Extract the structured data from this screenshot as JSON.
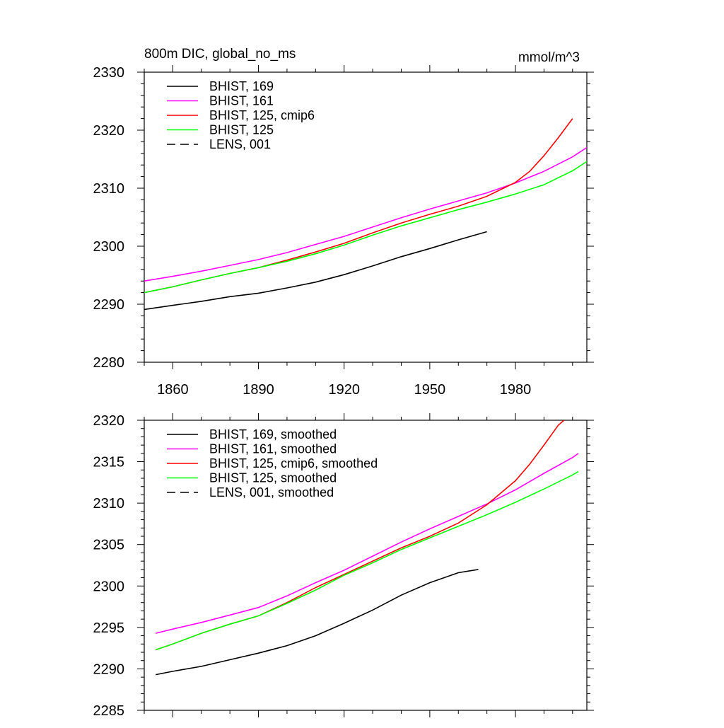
{
  "chart_data": [
    {
      "type": "line",
      "title_left": "800m DIC, global_no_ms",
      "title_right": "mmol/m^3",
      "xlim": [
        1850,
        2005
      ],
      "ylim": [
        2280,
        2330
      ],
      "xticks": [
        1860,
        1890,
        1920,
        1950,
        1980
      ],
      "xtick_labels": [
        "1860",
        "1890",
        "1920",
        "1950",
        "1980"
      ],
      "yticks": [
        2280,
        2290,
        2300,
        2310,
        2320,
        2330
      ],
      "ytick_labels": [
        "2280",
        "2290",
        "2300",
        "2310",
        "2320",
        "2330"
      ],
      "legend_position": "top-left",
      "series": [
        {
          "name": "BHIST, 169",
          "color": "#000000",
          "dash": "solid",
          "x": [
            1850,
            1860,
            1870,
            1880,
            1890,
            1900,
            1910,
            1920,
            1930,
            1940,
            1950,
            1960,
            1970
          ],
          "y": [
            2289.1,
            2289.8,
            2290.5,
            2291.3,
            2291.9,
            2292.8,
            2293.8,
            2295.1,
            2296.6,
            2298.2,
            2299.6,
            2301.1,
            2302.5
          ]
        },
        {
          "name": "BHIST, 161",
          "color": "#ff00ff",
          "dash": "solid",
          "x": [
            1850,
            1860,
            1870,
            1880,
            1890,
            1900,
            1910,
            1920,
            1930,
            1940,
            1950,
            1960,
            1970,
            1980,
            1990,
            2000,
            2005
          ],
          "y": [
            2294.0,
            2294.8,
            2295.7,
            2296.7,
            2297.7,
            2298.9,
            2300.3,
            2301.7,
            2303.3,
            2304.9,
            2306.4,
            2307.8,
            2309.2,
            2310.9,
            2312.9,
            2315.4,
            2317.0
          ]
        },
        {
          "name": "BHIST, 125, cmip6",
          "color": "#ff0000",
          "dash": "solid",
          "x": [
            1850,
            1860,
            1870,
            1880,
            1890,
            1900,
            1910,
            1920,
            1930,
            1940,
            1950,
            1960,
            1970,
            1980,
            1985,
            1990,
            1995,
            2000
          ],
          "y": [
            2292.0,
            2293.0,
            2294.2,
            2295.3,
            2296.3,
            2297.6,
            2299.0,
            2300.5,
            2302.3,
            2304.0,
            2305.5,
            2306.9,
            2308.6,
            2311.0,
            2312.9,
            2315.6,
            2318.7,
            2322.0
          ]
        },
        {
          "name": "BHIST, 125",
          "color": "#00ff00",
          "dash": "solid",
          "x": [
            1850,
            1860,
            1870,
            1880,
            1890,
            1900,
            1910,
            1920,
            1930,
            1940,
            1950,
            1960,
            1970,
            1980,
            1990,
            2000,
            2005
          ],
          "y": [
            2292.0,
            2293.0,
            2294.2,
            2295.3,
            2296.3,
            2297.4,
            2298.7,
            2300.2,
            2301.9,
            2303.5,
            2304.9,
            2306.3,
            2307.6,
            2309.0,
            2310.6,
            2313.0,
            2314.6
          ]
        },
        {
          "name": "LENS, 001",
          "color": "#000000",
          "dash": "dashed",
          "x": [],
          "y": []
        }
      ]
    },
    {
      "type": "line",
      "xlim": [
        1850,
        2005
      ],
      "ylim": [
        2285,
        2320
      ],
      "xticks": [
        1860,
        1890,
        1920,
        1950,
        1980
      ],
      "yticks": [
        2285,
        2290,
        2295,
        2300,
        2305,
        2310,
        2315,
        2320
      ],
      "ytick_labels": [
        "2285",
        "2290",
        "2295",
        "2300",
        "2305",
        "2310",
        "2315",
        "2320"
      ],
      "legend_position": "top-left",
      "series": [
        {
          "name": "BHIST, 169, smoothed",
          "color": "#000000",
          "dash": "solid",
          "x": [
            1854,
            1860,
            1870,
            1880,
            1890,
            1900,
            1910,
            1920,
            1930,
            1940,
            1950,
            1960,
            1967
          ],
          "y": [
            2289.3,
            2289.7,
            2290.3,
            2291.1,
            2291.9,
            2292.8,
            2294.0,
            2295.5,
            2297.1,
            2298.9,
            2300.4,
            2301.6,
            2302.0
          ]
        },
        {
          "name": "BHIST, 161, smoothed",
          "color": "#ff00ff",
          "dash": "solid",
          "x": [
            1854,
            1860,
            1870,
            1880,
            1890,
            1900,
            1910,
            1920,
            1930,
            1940,
            1950,
            1960,
            1970,
            1980,
            1990,
            2000,
            2002
          ],
          "y": [
            2294.3,
            2294.8,
            2295.6,
            2296.5,
            2297.4,
            2298.8,
            2300.4,
            2301.9,
            2303.6,
            2305.3,
            2306.9,
            2308.4,
            2309.9,
            2311.6,
            2313.6,
            2315.5,
            2316.0
          ]
        },
        {
          "name": "BHIST, 125, cmip6, smoothed",
          "color": "#ff0000",
          "dash": "solid",
          "x": [
            1854,
            1860,
            1870,
            1880,
            1890,
            1900,
            1910,
            1920,
            1930,
            1940,
            1950,
            1960,
            1970,
            1980,
            1985,
            1990,
            1995,
            1997
          ],
          "y": [
            2292.3,
            2293.0,
            2294.3,
            2295.4,
            2296.4,
            2298.0,
            2299.8,
            2301.4,
            2303.0,
            2304.6,
            2306.0,
            2307.6,
            2309.8,
            2312.7,
            2314.7,
            2317.0,
            2319.4,
            2320.0
          ]
        },
        {
          "name": "BHIST, 125, smoothed",
          "color": "#00ff00",
          "dash": "solid",
          "x": [
            1854,
            1860,
            1870,
            1880,
            1890,
            1900,
            1910,
            1920,
            1930,
            1940,
            1950,
            1960,
            1970,
            1980,
            1990,
            2000,
            2002
          ],
          "y": [
            2292.3,
            2293.0,
            2294.3,
            2295.4,
            2296.4,
            2297.9,
            2299.5,
            2301.3,
            2302.8,
            2304.4,
            2305.8,
            2307.2,
            2308.6,
            2310.1,
            2311.7,
            2313.4,
            2313.8
          ]
        },
        {
          "name": "LENS, 001, smoothed",
          "color": "#000000",
          "dash": "dashed",
          "x": [],
          "y": []
        }
      ]
    }
  ]
}
